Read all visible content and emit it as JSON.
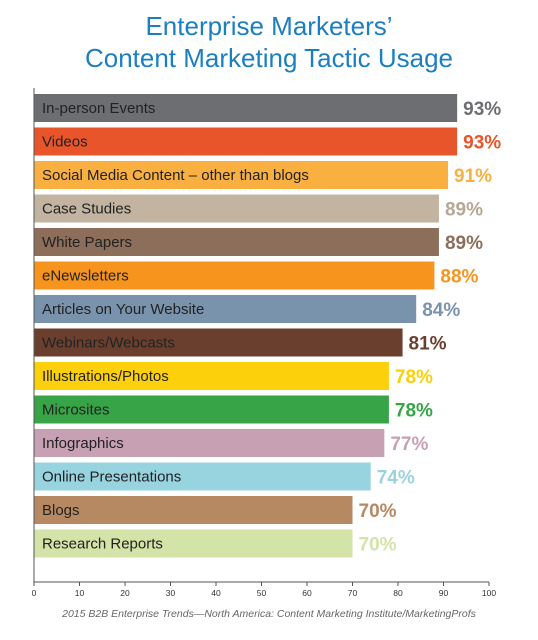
{
  "chart_data": {
    "type": "bar",
    "orientation": "horizontal",
    "title_lines": [
      "Enterprise Marketers’",
      "Content Marketing Tactic Usage"
    ],
    "categories": [
      "In-person Events",
      "Videos",
      "Social Media Content – other than blogs",
      "Case Studies",
      "White Papers",
      "eNewsletters",
      "Articles on Your Website",
      "Webinars/Webcasts",
      "Illustrations/Photos",
      "Microsites",
      "Infographics",
      "Online Presentations",
      "Blogs",
      "Research Reports"
    ],
    "values": [
      93,
      93,
      91,
      89,
      89,
      88,
      84,
      81,
      78,
      78,
      77,
      74,
      70,
      70
    ],
    "value_labels": [
      "93%",
      "93%",
      "91%",
      "89%",
      "89%",
      "88%",
      "84%",
      "81%",
      "78%",
      "78%",
      "77%",
      "74%",
      "70%",
      "70%"
    ],
    "colors": [
      "#6d6e71",
      "#e8552a",
      "#f9b041",
      "#c2b4a0",
      "#8c6e5a",
      "#f7941e",
      "#7a93ad",
      "#6b3f2e",
      "#fcd00a",
      "#37a547",
      "#c8a0b4",
      "#98d4df",
      "#b78962",
      "#d4e3a7"
    ],
    "value_label_colors": [
      "#6d6e71",
      "#e8552a",
      "#f9b041",
      "#b5a895",
      "#8c6e5a",
      "#f7941e",
      "#7a93ad",
      "#6b3f2e",
      "#fcd00a",
      "#37a547",
      "#c8a0b4",
      "#98d4df",
      "#b78962",
      "#d4e3a7"
    ],
    "xlim": [
      0,
      100
    ],
    "xticks": [
      0,
      10,
      20,
      30,
      40,
      50,
      60,
      70,
      80,
      90,
      100
    ],
    "grid": false,
    "legend": "none",
    "source": "2015 B2B Enterprise Trends—North America: Content Marketing Institute/MarketingProfs"
  }
}
